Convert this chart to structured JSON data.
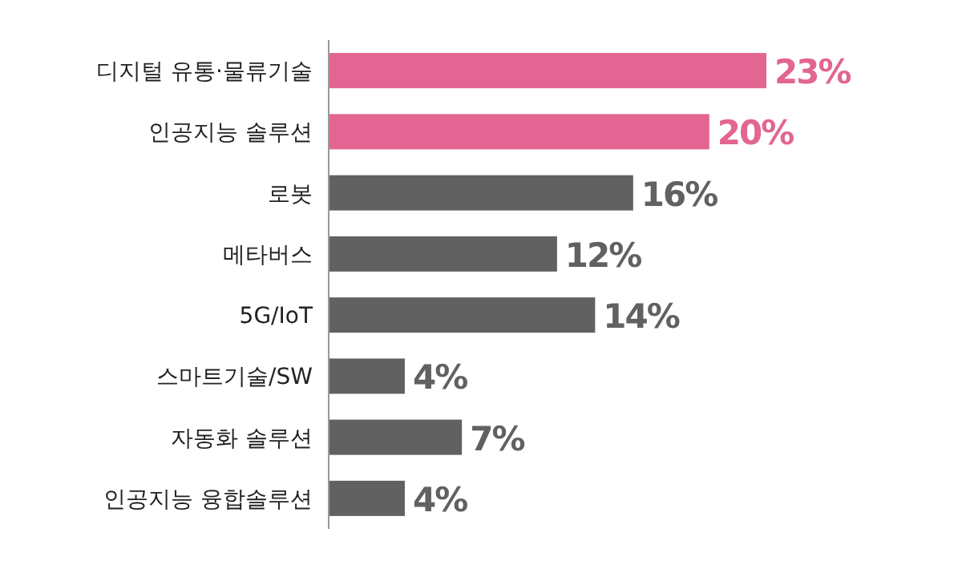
{
  "chart_data": {
    "type": "bar",
    "orientation": "horizontal",
    "categories": [
      "디지털 유통·물류기술",
      "인공지능 솔루션",
      "로봇",
      "메타버스",
      "5G/IoT",
      "스마트기술/SW",
      "자동화 솔루션",
      "인공지능 융합솔루션"
    ],
    "values": [
      23,
      20,
      16,
      12,
      14,
      4,
      7,
      4
    ],
    "colors": [
      "#e26592",
      "#e26592",
      "#616161",
      "#616161",
      "#616161",
      "#616161",
      "#616161",
      "#616161"
    ],
    "value_labels": [
      "23%",
      "20%",
      "16%",
      "12%",
      "14%",
      "4%",
      "7%",
      "4%"
    ]
  }
}
